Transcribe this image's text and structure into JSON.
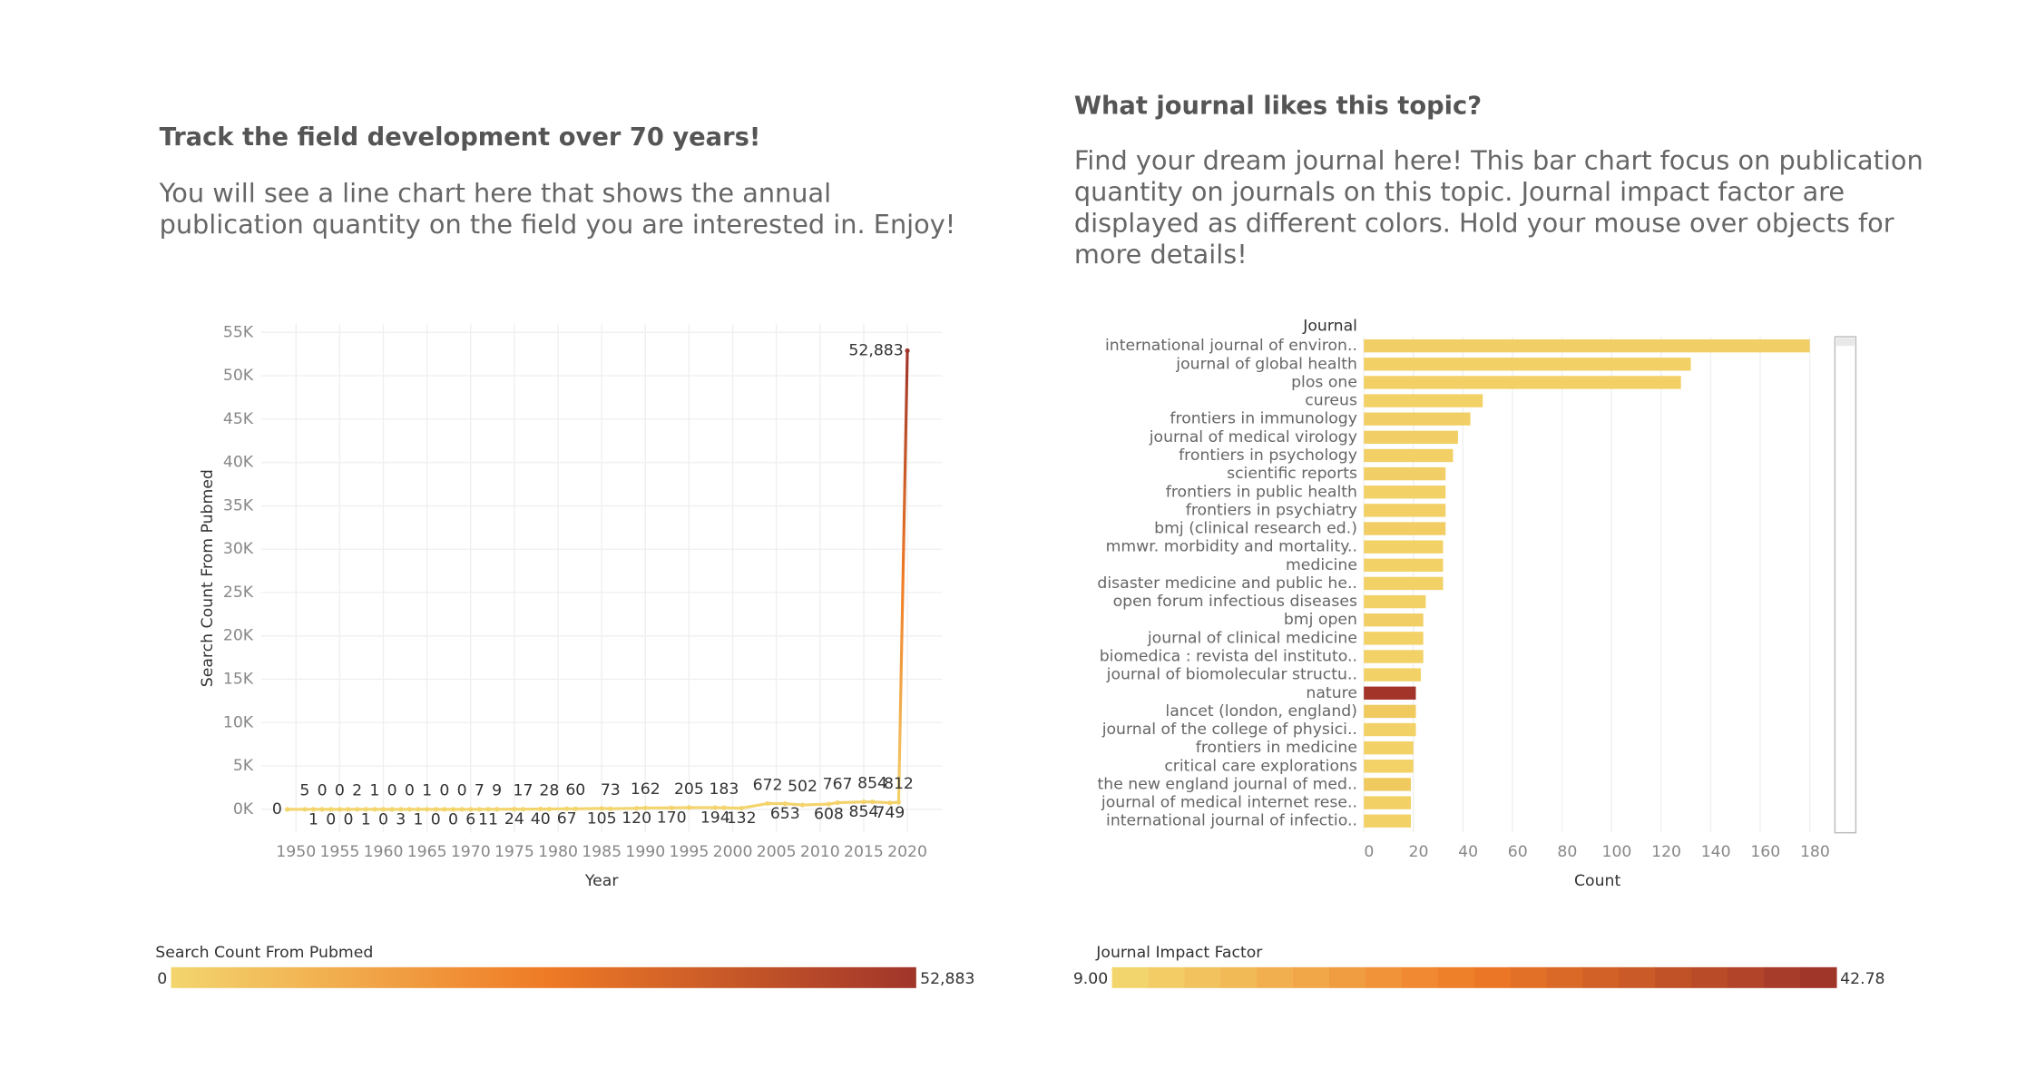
{
  "chart_data": [
    {
      "type": "line",
      "title": "Track the field development over 70 years!",
      "subtitle": [
        "You will see a line chart here that shows the annual",
        "publication quantity on the field you are interested in. Enjoy!"
      ],
      "x": [
        1949,
        1951,
        1952,
        1953,
        1954,
        1955,
        1956,
        1957,
        1958,
        1959,
        1960,
        1961,
        1962,
        1963,
        1964,
        1965,
        1966,
        1967,
        1968,
        1969,
        1970,
        1971,
        1972,
        1973,
        1975,
        1976,
        1978,
        1979,
        1981,
        1982,
        1985,
        1986,
        1989,
        1990,
        1993,
        1995,
        1998,
        1999,
        2001,
        2004,
        2006,
        2008,
        2011,
        2012,
        2015,
        2016,
        2018,
        2019,
        2020
      ],
      "values": [
        0,
        5,
        1,
        0,
        0,
        0,
        0,
        2,
        1,
        1,
        0,
        0,
        3,
        0,
        1,
        1,
        0,
        0,
        0,
        0,
        6,
        7,
        11,
        9,
        24,
        17,
        40,
        28,
        67,
        60,
        105,
        73,
        120,
        162,
        170,
        205,
        194,
        183,
        132,
        672,
        653,
        502,
        608,
        767,
        854,
        854,
        749,
        812,
        52883
      ],
      "value_labels": [
        "0",
        "5",
        "1",
        "0",
        "0",
        "0",
        "0",
        "2",
        "1",
        "1",
        "0",
        "0",
        "3",
        "0",
        "1",
        "1",
        "0",
        "0",
        "0",
        "0",
        "6",
        "7",
        "11",
        "9",
        "24",
        "17",
        "40",
        "28",
        "67",
        "60",
        "105",
        "73",
        "120",
        "162",
        "170",
        "205",
        "194",
        "183",
        "132",
        "672",
        "653",
        "502",
        "608",
        "767",
        "854",
        "854",
        "749",
        "812",
        "52,883"
      ],
      "xlabel": "Year",
      "ylabel": "Search Count From Pubmed",
      "xlim": [
        1946,
        2024
      ],
      "ylim": [
        -2700,
        56000
      ],
      "xticks": [
        1950,
        1955,
        1960,
        1965,
        1970,
        1975,
        1980,
        1985,
        1990,
        1995,
        2000,
        2005,
        2010,
        2015,
        2020
      ],
      "yticks": [
        {
          "value": 0,
          "label": "0K"
        },
        {
          "value": 5000,
          "label": "5K"
        },
        {
          "value": 10000,
          "label": "10K"
        },
        {
          "value": 15000,
          "label": "15K"
        },
        {
          "value": 20000,
          "label": "20K"
        },
        {
          "value": 25000,
          "label": "25K"
        },
        {
          "value": 30000,
          "label": "30K"
        },
        {
          "value": 35000,
          "label": "35K"
        },
        {
          "value": 40000,
          "label": "40K"
        },
        {
          "value": 45000,
          "label": "45K"
        },
        {
          "value": 50000,
          "label": "50K"
        },
        {
          "value": 55000,
          "label": "55K"
        }
      ],
      "grid": true,
      "color_scale": {
        "title": "Search Count From Pubmed",
        "min": 0,
        "max": {
          "value": 52883,
          "label": "52,883"
        },
        "colors": [
          "#f3d56e",
          "#ef7b26",
          "#a0352a"
        ],
        "stepped": false
      }
    },
    {
      "type": "hbar",
      "title": "What journal likes this topic?",
      "subtitle": [
        "Find your dream journal here! This bar chart focus on publication",
        "quantity on journals on this topic. Journal impact factor are",
        "displayed as different colors. Hold your mouse over objects for",
        "more details!"
      ],
      "category_title": "Journal",
      "categories": [
        "international journal of environ..",
        "journal of global health",
        "plos one",
        "cureus",
        "frontiers in immunology",
        "journal of medical virology",
        "frontiers in psychology",
        "scientific reports",
        "frontiers in public health",
        "frontiers in psychiatry",
        "bmj (clinical research ed.)",
        "mmwr. morbidity and mortality..",
        "medicine",
        "disaster medicine and public he..",
        "open forum infectious diseases",
        "bmj open",
        "journal of clinical medicine",
        "biomedica : revista del instituto..",
        "journal of biomolecular structu..",
        "nature",
        "lancet (london, england)",
        "journal of the college of physici..",
        "frontiers in medicine",
        "critical care explorations",
        "the new england journal of med..",
        "journal of medical internet rese..",
        "international journal of infectio.."
      ],
      "values": [
        180,
        132,
        128,
        48,
        43,
        38,
        36,
        33,
        33,
        33,
        33,
        32,
        32,
        32,
        25,
        24,
        24,
        24,
        23,
        21,
        21,
        21,
        20,
        20,
        19,
        19,
        19
      ],
      "colors": [
        "#f2cf66",
        "#f2d066",
        "#f2d066",
        "#f2d166",
        "#f2cf66",
        "#f2cf66",
        "#f2d066",
        "#f2cf66",
        "#f2d166",
        "#f2d066",
        "#f1cd64",
        "#f2d166",
        "#f2d166",
        "#f2d166",
        "#f2d166",
        "#f2cf66",
        "#f2d166",
        "#f2d166",
        "#f2d166",
        "#a3342a",
        "#f0c95f",
        "#f2d166",
        "#f2d166",
        "#f2d166",
        "#f0c95f",
        "#f2d066",
        "#f2d166"
      ],
      "xlabel": "Count",
      "xlim": [
        0,
        187
      ],
      "xticks": [
        0,
        20,
        40,
        60,
        80,
        100,
        120,
        140,
        160,
        180
      ],
      "grid": true,
      "color_scale": {
        "title": "Journal Impact Factor",
        "min": {
          "value": 9,
          "label": "9.00"
        },
        "max": {
          "value": 42.78,
          "label": "42.78"
        },
        "colors": [
          "#f3d56e",
          "#ef7b26",
          "#a0352a"
        ],
        "stepped": true
      }
    }
  ]
}
